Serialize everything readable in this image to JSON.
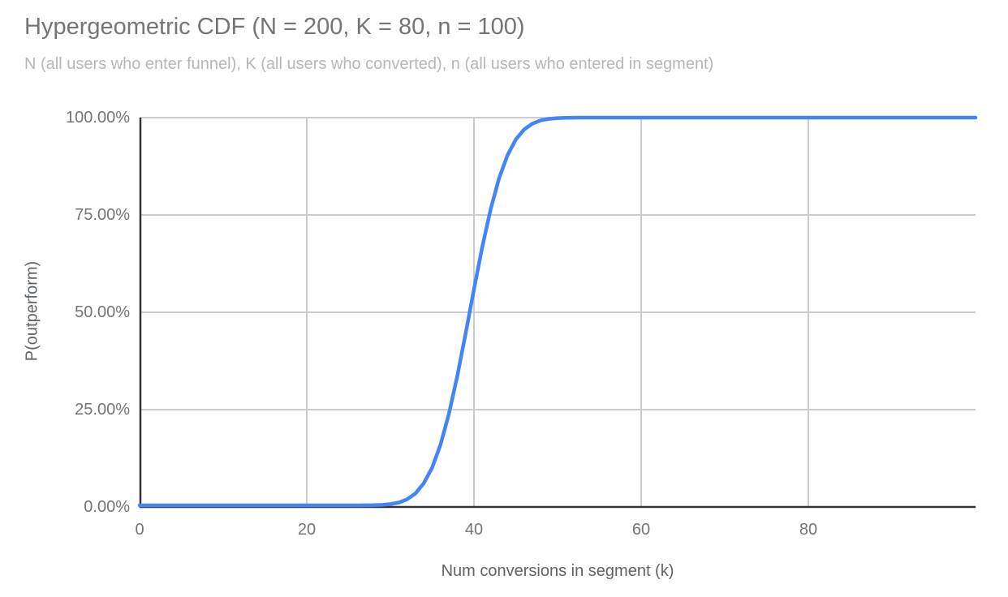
{
  "header": {
    "title": "Hypergeometric CDF (N = 200, K = 80, n = 100)",
    "subtitle": "N (all users who enter funnel), K (all users who converted), n (all users who entered in segment)"
  },
  "colors": {
    "title": "#757575",
    "subtitle": "#b7b7b7",
    "tick_label": "#757575",
    "axis_title": "#5f6368",
    "gridline": "#cccccc",
    "axis_line": "#333333",
    "series_line": "#4285f4",
    "background": "#ffffff"
  },
  "chart_data": {
    "type": "line",
    "title": "Hypergeometric CDF (N = 200, K = 80, n = 100)",
    "subtitle": "N (all users who enter funnel), K (all users who converted), n (all users who entered in segment)",
    "xlabel": "Num conversions in segment (k)",
    "ylabel": "P(outperform)",
    "xlim": [
      0,
      100
    ],
    "ylim": [
      0,
      1
    ],
    "grid": true,
    "legend": "none",
    "x_ticks": [
      {
        "value": 0,
        "label": "0"
      },
      {
        "value": 20,
        "label": "20"
      },
      {
        "value": 40,
        "label": "40"
      },
      {
        "value": 60,
        "label": "60"
      },
      {
        "value": 80,
        "label": "80"
      }
    ],
    "y_ticks": [
      {
        "value": 0.0,
        "label": "0.00%"
      },
      {
        "value": 0.25,
        "label": "25.00%"
      },
      {
        "value": 0.5,
        "label": "50.00%"
      },
      {
        "value": 0.75,
        "label": "75.00%"
      },
      {
        "value": 1.0,
        "label": "100.00%"
      }
    ],
    "series": [
      {
        "name": "P(outperform)",
        "color": "#4285f4",
        "points": [
          [
            0,
            0
          ],
          [
            5,
            0
          ],
          [
            10,
            0
          ],
          [
            15,
            0
          ],
          [
            20,
            0
          ],
          [
            24,
            0
          ],
          [
            26,
            0.0001
          ],
          [
            27,
            0.0002
          ],
          [
            28,
            0.0005
          ],
          [
            29,
            0.0013
          ],
          [
            30,
            0.0031
          ],
          [
            31,
            0.0072
          ],
          [
            32,
            0.0154
          ],
          [
            33,
            0.0307
          ],
          [
            34,
            0.0571
          ],
          [
            35,
            0.0975
          ],
          [
            36,
            0.1567
          ],
          [
            37,
            0.2358
          ],
          [
            38,
            0.3329
          ],
          [
            39,
            0.4428
          ],
          [
            40,
            0.5572
          ],
          [
            41,
            0.6671
          ],
          [
            42,
            0.7642
          ],
          [
            43,
            0.8433
          ],
          [
            44,
            0.9025
          ],
          [
            45,
            0.9434
          ],
          [
            46,
            0.9694
          ],
          [
            47,
            0.9846
          ],
          [
            48,
            0.9928
          ],
          [
            49,
            0.9969
          ],
          [
            50,
            0.9988
          ],
          [
            51,
            0.9995
          ],
          [
            52,
            0.9998
          ],
          [
            53,
            0.9999
          ],
          [
            54,
            1
          ],
          [
            55,
            1
          ],
          [
            60,
            1
          ],
          [
            70,
            1
          ],
          [
            80,
            1
          ],
          [
            90,
            1
          ],
          [
            100,
            1
          ]
        ]
      }
    ]
  }
}
